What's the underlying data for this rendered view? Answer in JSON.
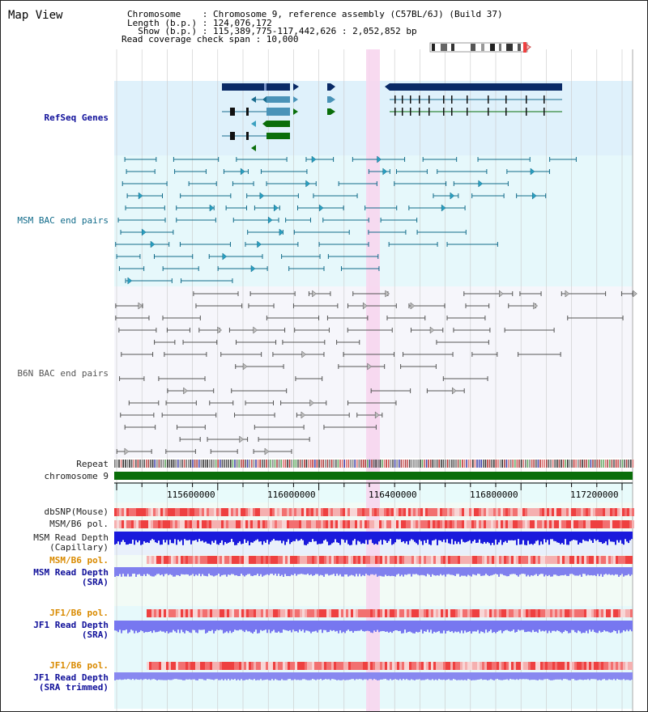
{
  "title": "Map View",
  "info": {
    "chromosome_line": "Chromosome    : Chromosome 9, reference assembly (C57BL/6J) (Build 37)",
    "length_line": "Length (b.p.) : 124,076,172",
    "show_line": "  Show (b.p.) : 115,389,775-117,442,626 : 2,052,852 bp",
    "span_line": "Read coverage check span : 10,000"
  },
  "tracks": {
    "refseq": "RefSeq Genes",
    "msm_bac": "MSM BAC end pairs",
    "b6n_bac": "B6N BAC end pairs",
    "repeat": "Repeat",
    "chromosome": "chromosome 9",
    "dbsnp": "dbSNP(Mouse)",
    "msm_b6_pol_1": "MSM/B6 pol.",
    "msm_depth_cap_1": "MSM Read Depth",
    "msm_depth_cap_2": "(Capillary)",
    "msm_b6_pol_2": "MSM/B6 pol.",
    "msm_depth_sra_1": "MSM Read Depth",
    "msm_depth_sra_2": "(SRA)",
    "jf1_b6_pol_1": "JF1/B6 pol.",
    "jf1_depth_sra_1": "JF1 Read Depth",
    "jf1_depth_sra_2": "(SRA)",
    "jf1_b6_pol_2": "JF1/B6 pol.",
    "jf1_depth_trim_1": "JF1 Read Depth",
    "jf1_depth_trim_2": "(SRA trimmed)"
  },
  "axis": {
    "ticks": [
      "115600000",
      "116000000",
      "116400000",
      "116800000",
      "117200000"
    ]
  },
  "colors": {
    "navy": "#0a2a66",
    "teal": "#116b8a",
    "green": "#0a6e0a",
    "gray_track": "#555555",
    "highlight": "#f7d6ee",
    "refseq_bg": "#dff1fb",
    "msm_bg": "#e6f8fb",
    "b6n_bg": "#f6f6fb",
    "pol_label": "#d98a00",
    "depth_label": "#10109a",
    "depth_blue": "#1a1adc",
    "depth_light": "#8080ee"
  }
}
